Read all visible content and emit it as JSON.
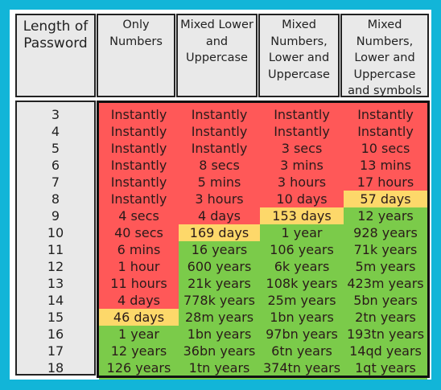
{
  "headers": {
    "length": [
      "Length of",
      "Password"
    ],
    "cols": [
      [
        "Only",
        "Numbers"
      ],
      [
        "Mixed Lower",
        "and",
        "Uppercase"
      ],
      [
        "Mixed",
        "Numbers,",
        "Lower and",
        "Uppercase"
      ],
      [
        "Mixed",
        "Numbers,",
        "Lower and",
        "Uppercase",
        "and symbols"
      ]
    ]
  },
  "lengths": [
    "3",
    "4",
    "5",
    "6",
    "7",
    "8",
    "9",
    "10",
    "11",
    "12",
    "13",
    "14",
    "15",
    "16",
    "17",
    "18"
  ],
  "rows": [
    [
      "Instantly",
      "Instantly",
      "Instantly",
      "Instantly"
    ],
    [
      "Instantly",
      "Instantly",
      "Instantly",
      "Instantly"
    ],
    [
      "Instantly",
      "Instantly",
      "3 secs",
      "10 secs"
    ],
    [
      "Instantly",
      "8 secs",
      "3 mins",
      "13 mins"
    ],
    [
      "Instantly",
      "5 mins",
      "3 hours",
      "17 hours"
    ],
    [
      "Instantly",
      "3 hours",
      "10 days",
      "57 days"
    ],
    [
      "4 secs",
      "4 days",
      "153 days",
      "12 years"
    ],
    [
      "40 secs",
      "169 days",
      "1 year",
      "928 years"
    ],
    [
      "6 mins",
      "16 years",
      "106 years",
      "71k years"
    ],
    [
      "1 hour",
      "600 years",
      "6k years",
      "5m years"
    ],
    [
      "11 hours",
      "21k years",
      "108k years",
      "423m years"
    ],
    [
      "4 days",
      "778k years",
      "25m years",
      "5bn years"
    ],
    [
      "46 days",
      "28m years",
      "1bn years",
      "2tn years"
    ],
    [
      "1 year",
      "1bn years",
      "97bn years",
      "193tn years"
    ],
    [
      "12 years",
      "36bn years",
      "6tn years",
      "14qd years"
    ],
    [
      "126 years",
      "1tn years",
      "374tn years",
      "1qt years"
    ]
  ],
  "row_status": [
    [
      "r",
      "r",
      "r",
      "r"
    ],
    [
      "r",
      "r",
      "r",
      "r"
    ],
    [
      "r",
      "r",
      "r",
      "r"
    ],
    [
      "r",
      "r",
      "r",
      "r"
    ],
    [
      "r",
      "r",
      "r",
      "r"
    ],
    [
      "r",
      "r",
      "r",
      "y"
    ],
    [
      "r",
      "r",
      "y",
      "g"
    ],
    [
      "r",
      "y",
      "g",
      "g"
    ],
    [
      "r",
      "g",
      "g",
      "g"
    ],
    [
      "r",
      "g",
      "g",
      "g"
    ],
    [
      "r",
      "g",
      "g",
      "g"
    ],
    [
      "r",
      "g",
      "g",
      "g"
    ],
    [
      "y",
      "g",
      "g",
      "g"
    ],
    [
      "g",
      "g",
      "g",
      "g"
    ],
    [
      "g",
      "g",
      "g",
      "g"
    ],
    [
      "g",
      "g",
      "g",
      "g"
    ]
  ],
  "colors": {
    "r": "#ff5858",
    "y": "#fdd86a",
    "g": "#7bcb4a",
    "background": "#12b5d8",
    "header_bg": "#e9e9e9"
  }
}
